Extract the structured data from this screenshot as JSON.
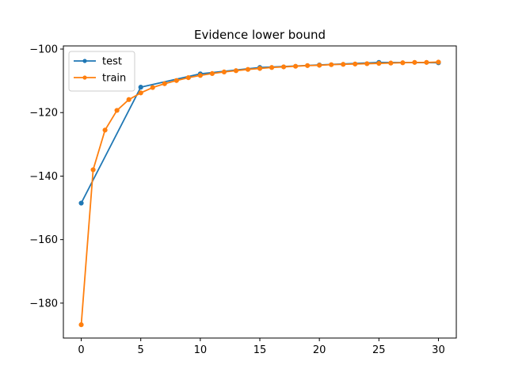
{
  "chart_data": {
    "type": "line",
    "title": "Evidence lower bound",
    "xlabel": "",
    "ylabel": "",
    "xlim": [
      -1.5,
      31.5
    ],
    "ylim": [
      -191,
      -99
    ],
    "x_ticks": [
      0,
      5,
      10,
      15,
      20,
      25,
      30
    ],
    "y_ticks": [
      -180,
      -160,
      -140,
      -120,
      -100
    ],
    "grid": false,
    "legend_position": "top-left",
    "series": [
      {
        "name": "test",
        "color": "#1f77b4",
        "marker": "circle",
        "x": [
          0,
          5,
          10,
          15,
          20,
          25,
          30
        ],
        "y": [
          -148.5,
          -112.0,
          -107.8,
          -105.8,
          -105.0,
          -104.2,
          -104.3
        ]
      },
      {
        "name": "train",
        "color": "#ff7f0e",
        "marker": "circle",
        "x": [
          0,
          1,
          2,
          3,
          4,
          5,
          6,
          7,
          8,
          9,
          10,
          11,
          12,
          13,
          14,
          15,
          16,
          17,
          18,
          19,
          20,
          21,
          22,
          23,
          24,
          25,
          26,
          27,
          28,
          29,
          30
        ],
        "y": [
          -186.8,
          -138.0,
          -125.5,
          -119.3,
          -115.9,
          -113.8,
          -112.1,
          -110.9,
          -109.9,
          -109.0,
          -108.3,
          -107.7,
          -107.2,
          -106.8,
          -106.4,
          -106.1,
          -105.8,
          -105.6,
          -105.4,
          -105.2,
          -105.1,
          -104.9,
          -104.8,
          -104.7,
          -104.6,
          -104.5,
          -104.4,
          -104.3,
          -104.2,
          -104.2,
          -104.1
        ]
      }
    ]
  }
}
